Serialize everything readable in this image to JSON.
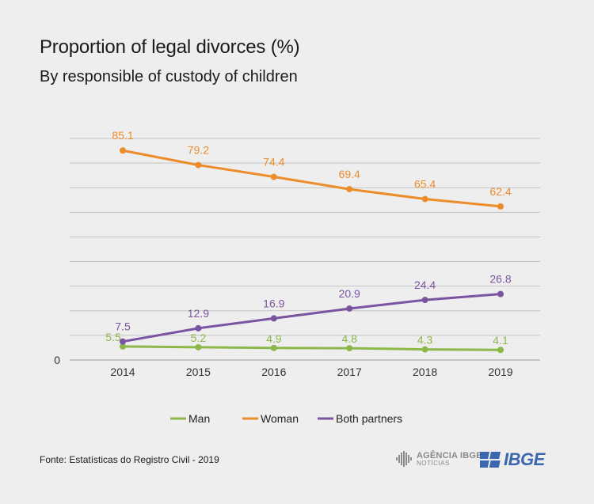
{
  "title": "Proportion of legal divorces (%)",
  "subtitle": "By responsible of custody of children",
  "source": "Fonte: Estatísticas do Registro Civil - 2019",
  "logos": {
    "agencia_main": "AGÊNCIA IBGE",
    "agencia_sub": "NOTÍCIAS",
    "ibge": "IBGE"
  },
  "chart_data": {
    "type": "line",
    "x": [
      "2014",
      "2015",
      "2016",
      "2017",
      "2018",
      "2019"
    ],
    "ylim": [
      0,
      90
    ],
    "y_tick_labels": [
      "0"
    ],
    "grid": true,
    "legend_position": "bottom",
    "series": [
      {
        "name": "Man",
        "color": "#8cb84a",
        "values": [
          5.5,
          5.2,
          4.9,
          4.8,
          4.3,
          4.1
        ]
      },
      {
        "name": "Woman",
        "color": "#ec8c2b",
        "values": [
          85.1,
          79.2,
          74.4,
          69.4,
          65.4,
          62.4
        ]
      },
      {
        "name": "Both partners",
        "color": "#7a54a0",
        "values": [
          7.5,
          12.9,
          16.9,
          20.9,
          24.4,
          26.8
        ]
      }
    ]
  }
}
